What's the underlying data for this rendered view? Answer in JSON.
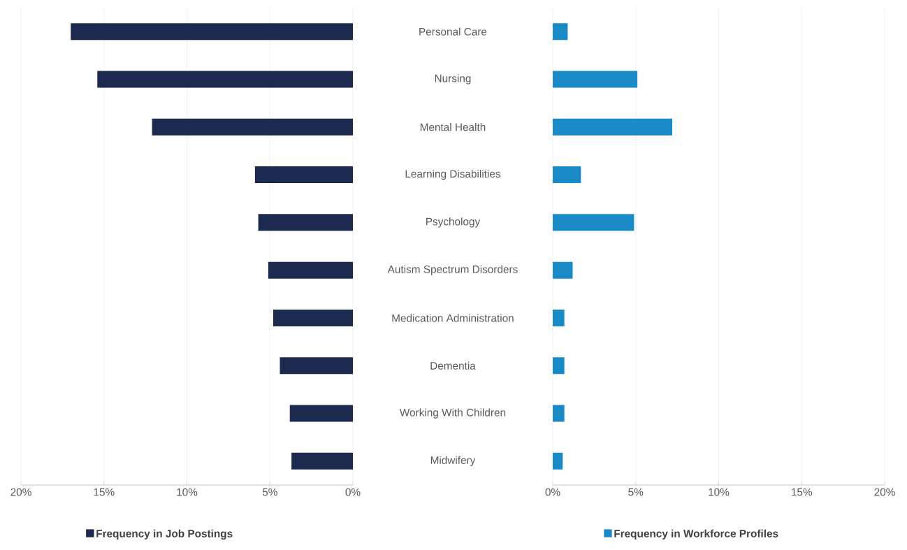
{
  "chart_data": [
    {
      "type": "bar",
      "orientation": "horizontal",
      "categories": [
        "Personal Care",
        "Nursing",
        "Mental Health",
        "Learning Disabilities",
        "Psychology",
        "Autism Spectrum Disorders",
        "Medication Administration",
        "Dementia",
        "Working With Children",
        "Midwifery"
      ],
      "series": [
        {
          "name": "Frequency in Job Postings",
          "color": "#1b2a4e",
          "values": [
            17.0,
            15.4,
            12.1,
            5.9,
            5.7,
            5.1,
            4.8,
            4.4,
            3.8,
            3.7
          ]
        }
      ],
      "xlim": [
        20,
        0
      ],
      "xticks": [
        {
          "value": 20,
          "label": "20%"
        },
        {
          "value": 15,
          "label": "15%"
        },
        {
          "value": 10,
          "label": "10%"
        },
        {
          "value": 5,
          "label": "5%"
        },
        {
          "value": 0,
          "label": "0%"
        }
      ],
      "grid": "x",
      "legend": "bottom"
    },
    {
      "type": "bar",
      "orientation": "horizontal",
      "categories": [
        null,
        null,
        null,
        null,
        null,
        null,
        null,
        null,
        null,
        null
      ],
      "series": [
        {
          "name": "Frequency in Workforce Profiles",
          "color": "#1a8ac6",
          "values": [
            0.9,
            5.1,
            7.2,
            1.7,
            4.9,
            1.2,
            0.7,
            0.7,
            0.7,
            0.6
          ]
        }
      ],
      "xlim": [
        0,
        20
      ],
      "xticks": [
        {
          "value": 0,
          "label": "0%"
        },
        {
          "value": 5,
          "label": "5%"
        },
        {
          "value": 10,
          "label": "10%"
        },
        {
          "value": 15,
          "label": "15%"
        },
        {
          "value": 20,
          "label": "20%"
        }
      ],
      "grid": "x",
      "legend": "bottom",
      "tick_labels": "x"
    }
  ]
}
